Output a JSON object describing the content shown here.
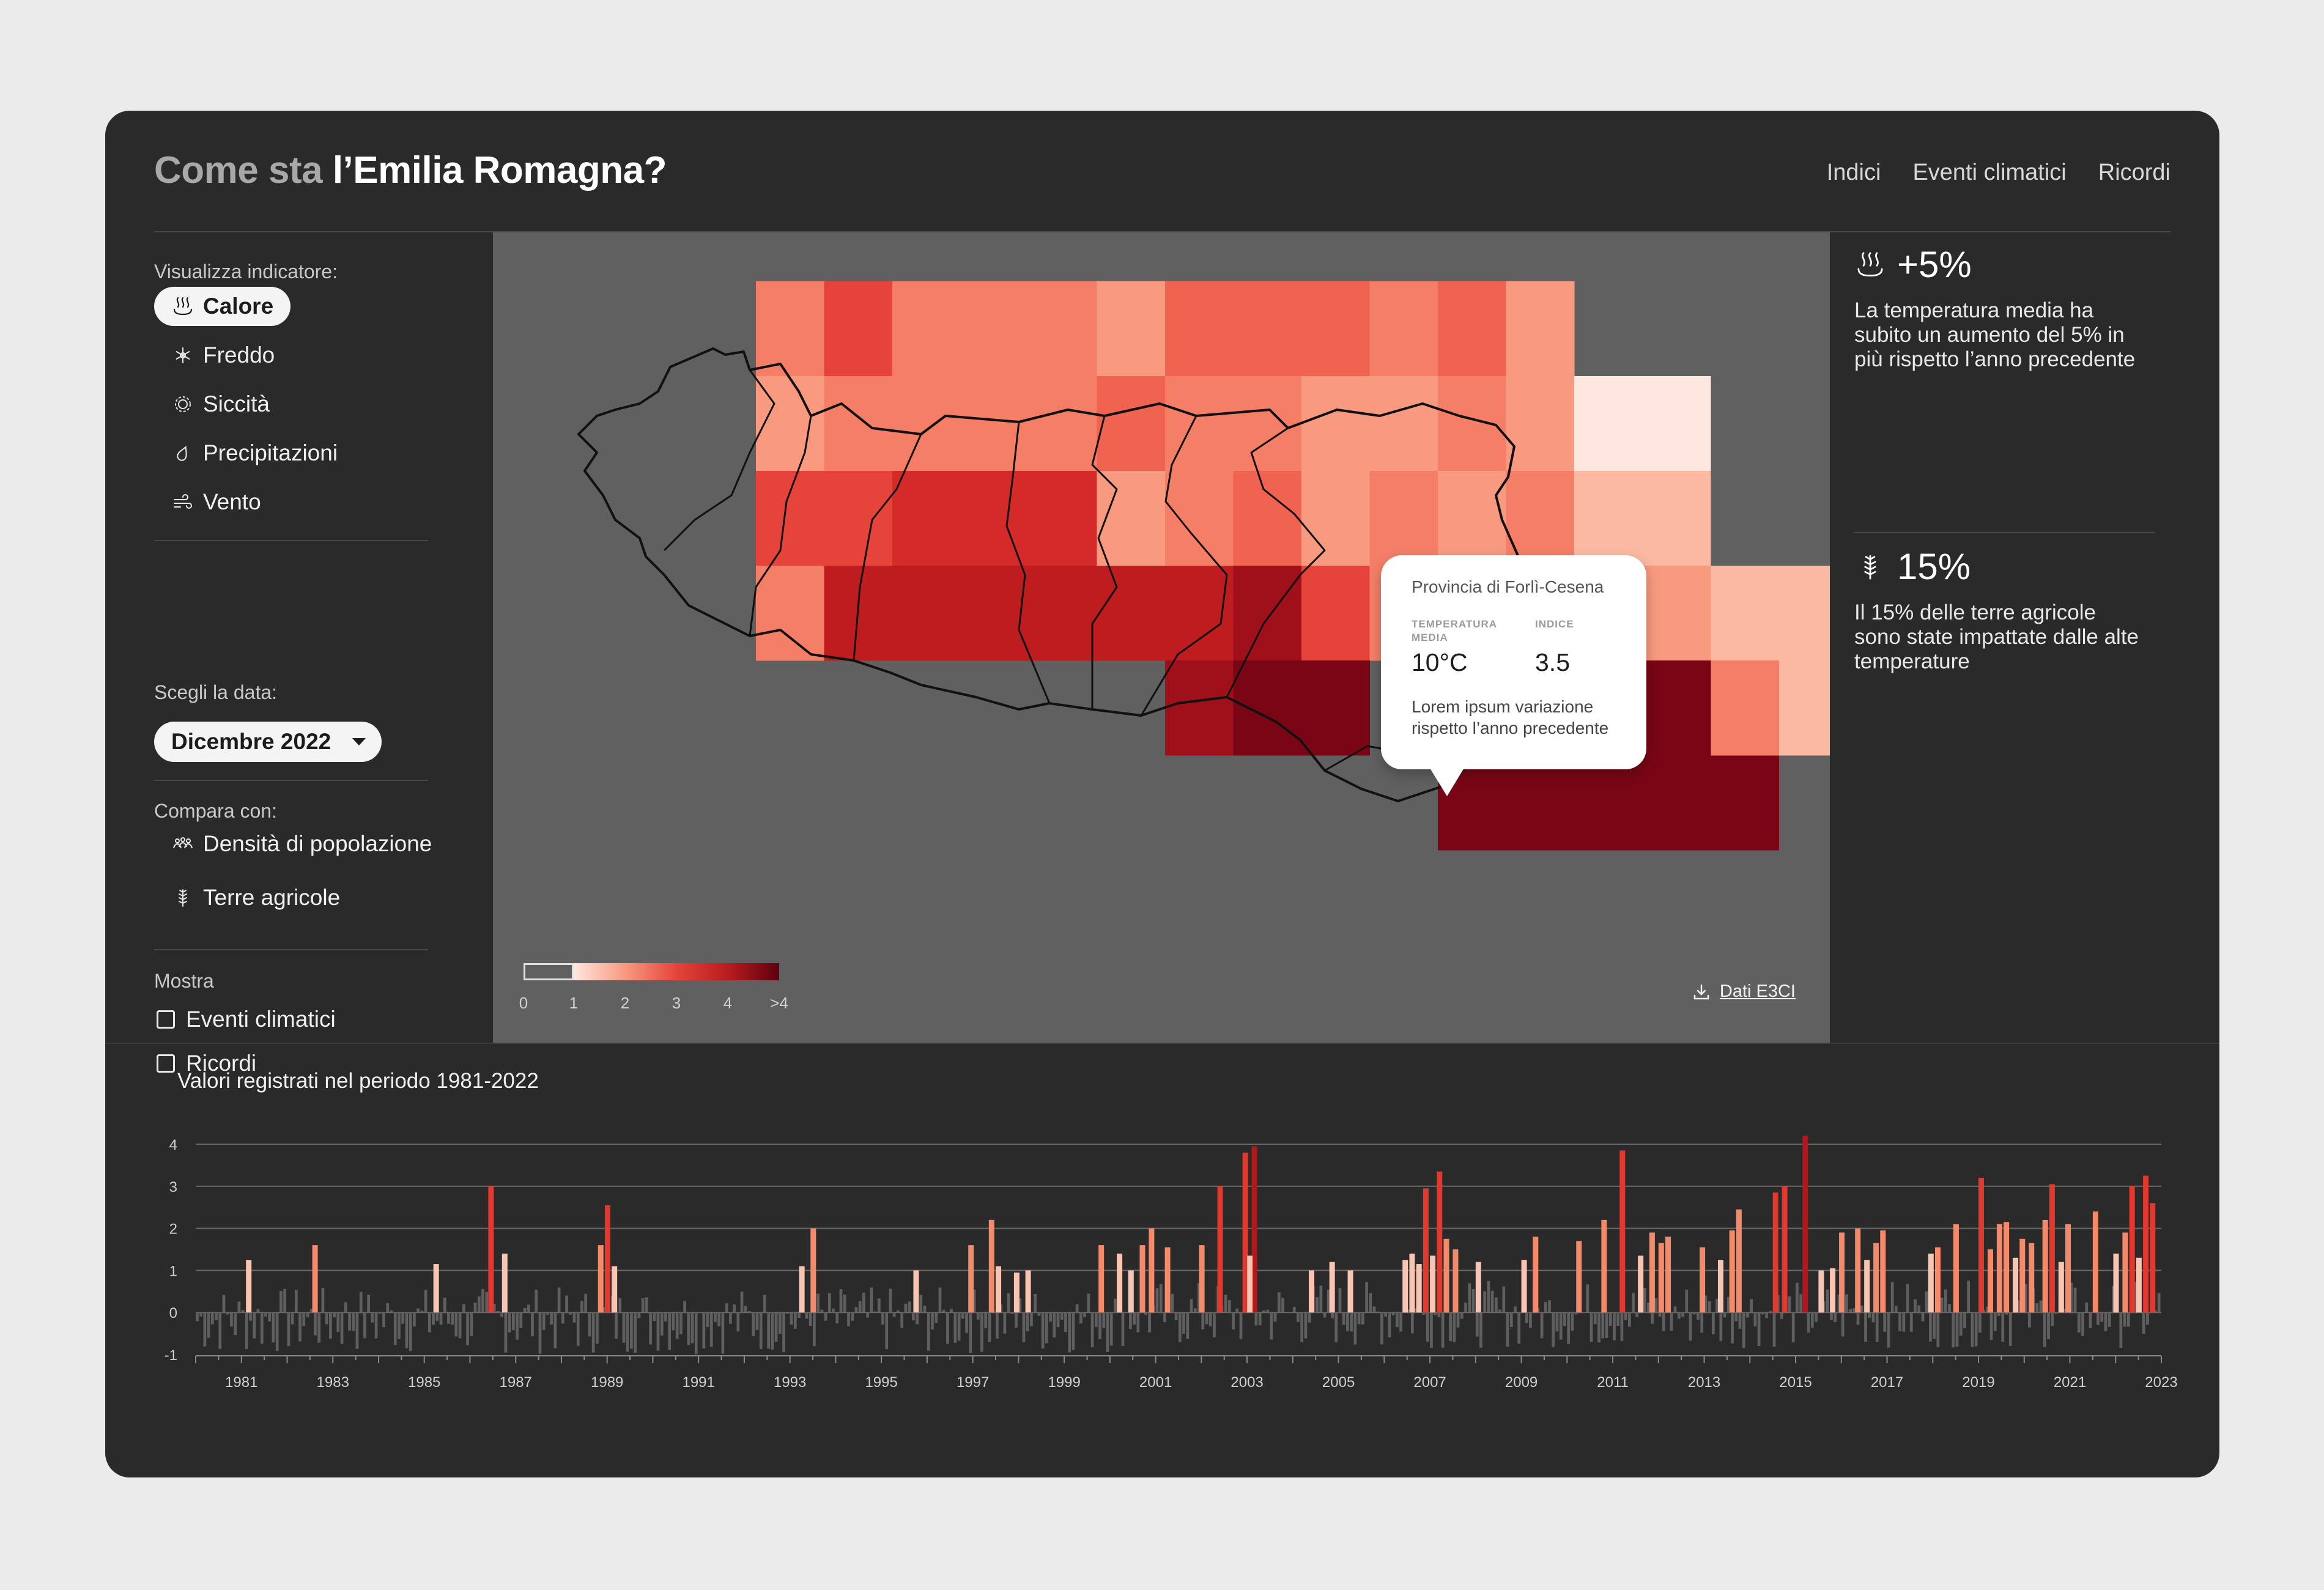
{
  "header": {
    "title_prefix": "Come sta",
    "title_main": "l’Emilia Romagna?",
    "nav": [
      "Indici",
      "Eventi climatici",
      "Ricordi"
    ]
  },
  "sidebar": {
    "indicator_label": "Visualizza indicatore:",
    "indicators": [
      {
        "label": "Calore",
        "icon": "heat-icon",
        "active": true
      },
      {
        "label": "Freddo",
        "icon": "snowflake-icon",
        "active": false
      },
      {
        "label": "Siccità",
        "icon": "sun-icon",
        "active": false
      },
      {
        "label": "Precipitazioni",
        "icon": "droplet-icon",
        "active": false
      },
      {
        "label": "Vento",
        "icon": "wind-icon",
        "active": false
      }
    ],
    "date_label": "Scegli la data:",
    "date_value": "Dicembre 2022",
    "compare_label": "Compara con:",
    "compare": [
      {
        "label": "Densità di popolazione",
        "icon": "people-icon"
      },
      {
        "label": "Terre agricole",
        "icon": "wheat-icon"
      }
    ],
    "show_label": "Mostra",
    "show": [
      {
        "label": "Eventi climatici",
        "checked": false
      },
      {
        "label": "Ricordi",
        "checked": false
      }
    ]
  },
  "map": {
    "tooltip": {
      "province": "Provincia di Forlì-Cesena",
      "temp_label_1": "TEMPERATURA",
      "temp_label_2": "MEDIA",
      "temp_value": "10°C",
      "index_label": "INDICE",
      "index_value": "3.5",
      "description": "Lorem ipsum variazione rispetto l’anno precedente"
    },
    "legend": [
      "0",
      "1",
      "2",
      "3",
      "4",
      ">4"
    ],
    "download_label": "Dati E3CI",
    "colors": {
      "background": "#606060",
      "low": "#fde7df",
      "high": "#5e0010"
    }
  },
  "right_panel": {
    "stats": [
      {
        "value": "+5%",
        "icon": "heat-icon",
        "text": "La temperatura media ha subito un aumento del 5% in più rispetto l’anno precedente"
      },
      {
        "value": "15%",
        "icon": "wheat-icon",
        "text": "Il 15% delle terre agricole sono state impattate dalle alte temperature"
      }
    ]
  },
  "chart_data": {
    "type": "bar",
    "title": "Valori registrati nel periodo 1981-2022",
    "ylim": [
      -1,
      4
    ],
    "yticks": [
      4,
      3,
      2,
      1,
      0,
      -1
    ],
    "xlabels": [
      "1981",
      "1983",
      "1985",
      "1987",
      "1989",
      "1991",
      "1993",
      "1995",
      "1997",
      "1999",
      "2001",
      "2003",
      "2005",
      "2007",
      "2009",
      "2011",
      "2013",
      "2015",
      "2017",
      "2019",
      "2021",
      "2023"
    ],
    "x_start": 1980,
    "x_end": 2023,
    "bars_per_year": 12,
    "highlight_values": [
      {
        "year": 1981.1,
        "value": 1.25
      },
      {
        "year": 1982.55,
        "value": 1.6
      },
      {
        "year": 1985.2,
        "value": 1.15
      },
      {
        "year": 1986.4,
        "value": 3.0
      },
      {
        "year": 1986.7,
        "value": 1.4
      },
      {
        "year": 1988.8,
        "value": 1.6
      },
      {
        "year": 1988.95,
        "value": 2.55
      },
      {
        "year": 1989.1,
        "value": 1.1
      },
      {
        "year": 1993.2,
        "value": 1.1
      },
      {
        "year": 1993.45,
        "value": 2.0
      },
      {
        "year": 1995.7,
        "value": 1.0
      },
      {
        "year": 1996.9,
        "value": 1.6
      },
      {
        "year": 1997.35,
        "value": 2.2
      },
      {
        "year": 1997.5,
        "value": 1.1
      },
      {
        "year": 1997.9,
        "value": 0.95
      },
      {
        "year": 1998.15,
        "value": 1.0
      },
      {
        "year": 1999.75,
        "value": 1.6
      },
      {
        "year": 2000.15,
        "value": 1.4
      },
      {
        "year": 2000.4,
        "value": 1.0
      },
      {
        "year": 2000.65,
        "value": 1.6
      },
      {
        "year": 2000.85,
        "value": 2.0
      },
      {
        "year": 2001.2,
        "value": 1.55
      },
      {
        "year": 2001.95,
        "value": 1.6
      },
      {
        "year": 2002.35,
        "value": 3.0
      },
      {
        "year": 2002.9,
        "value": 3.8
      },
      {
        "year": 2003.1,
        "value": 3.95
      },
      {
        "year": 2003.0,
        "value": 1.35
      },
      {
        "year": 2004.35,
        "value": 1.0
      },
      {
        "year": 2004.8,
        "value": 1.2
      },
      {
        "year": 2005.2,
        "value": 1.0
      },
      {
        "year": 2006.4,
        "value": 1.25
      },
      {
        "year": 2006.55,
        "value": 1.4
      },
      {
        "year": 2006.7,
        "value": 1.15
      },
      {
        "year": 2006.85,
        "value": 2.95
      },
      {
        "year": 2007.0,
        "value": 1.35
      },
      {
        "year": 2007.15,
        "value": 3.35
      },
      {
        "year": 2007.3,
        "value": 1.75
      },
      {
        "year": 2007.5,
        "value": 1.5
      },
      {
        "year": 2008.0,
        "value": 1.2
      },
      {
        "year": 2009.0,
        "value": 1.25
      },
      {
        "year": 2009.25,
        "value": 1.8
      },
      {
        "year": 2010.2,
        "value": 1.7
      },
      {
        "year": 2010.75,
        "value": 2.2
      },
      {
        "year": 2011.15,
        "value": 3.85
      },
      {
        "year": 2011.55,
        "value": 1.35
      },
      {
        "year": 2011.8,
        "value": 1.9
      },
      {
        "year": 2012.0,
        "value": 1.65
      },
      {
        "year": 2012.15,
        "value": 1.8
      },
      {
        "year": 2012.9,
        "value": 1.55
      },
      {
        "year": 2013.3,
        "value": 1.25
      },
      {
        "year": 2013.55,
        "value": 1.95
      },
      {
        "year": 2013.7,
        "value": 2.45
      },
      {
        "year": 2014.5,
        "value": 2.85
      },
      {
        "year": 2014.7,
        "value": 3.0
      },
      {
        "year": 2015.15,
        "value": 4.2
      },
      {
        "year": 2015.5,
        "value": 1.0
      },
      {
        "year": 2015.75,
        "value": 1.05
      },
      {
        "year": 2015.95,
        "value": 1.9
      },
      {
        "year": 2016.3,
        "value": 2.0
      },
      {
        "year": 2016.5,
        "value": 1.25
      },
      {
        "year": 2016.7,
        "value": 1.65
      },
      {
        "year": 2016.85,
        "value": 1.95
      },
      {
        "year": 2017.9,
        "value": 1.4
      },
      {
        "year": 2018.05,
        "value": 1.55
      },
      {
        "year": 2018.45,
        "value": 2.1
      },
      {
        "year": 2019.0,
        "value": 3.2
      },
      {
        "year": 2019.2,
        "value": 1.5
      },
      {
        "year": 2019.4,
        "value": 2.1
      },
      {
        "year": 2019.55,
        "value": 2.15
      },
      {
        "year": 2019.75,
        "value": 1.3
      },
      {
        "year": 2019.9,
        "value": 1.75
      },
      {
        "year": 2020.1,
        "value": 1.65
      },
      {
        "year": 2020.4,
        "value": 2.2
      },
      {
        "year": 2020.55,
        "value": 3.05
      },
      {
        "year": 2020.75,
        "value": 1.2
      },
      {
        "year": 2020.9,
        "value": 2.1
      },
      {
        "year": 2021.5,
        "value": 2.4
      },
      {
        "year": 2021.95,
        "value": 1.4
      },
      {
        "year": 2022.15,
        "value": 1.9
      },
      {
        "year": 2022.3,
        "value": 3.0
      },
      {
        "year": 2022.45,
        "value": 1.3
      },
      {
        "year": 2022.6,
        "value": 3.25
      },
      {
        "year": 2022.75,
        "value": 2.6
      }
    ],
    "colors": {
      "negative": "#5f5f5f",
      "low": "#f9c5b3",
      "mid": "#f58a6a",
      "high": "#e2382e",
      "max": "#b4161c"
    }
  }
}
